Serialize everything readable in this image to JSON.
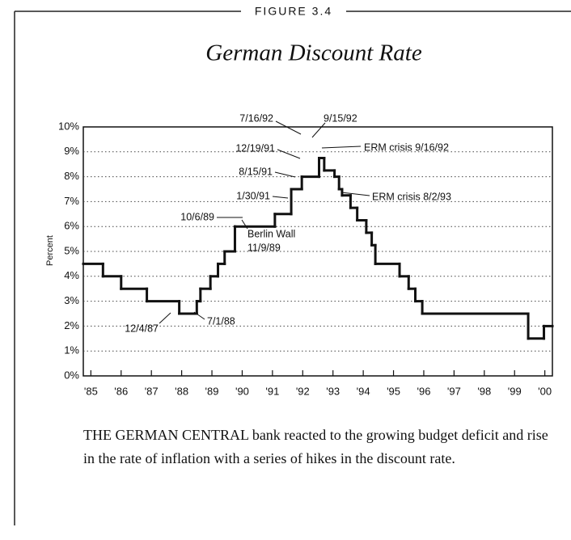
{
  "figure_label": "FIGURE 3.4",
  "caption": "THE GERMAN CENTRAL bank reacted to the growing budget deficit and rise in the rate of inflation with a series of hikes in the discount rate.",
  "chart_data": {
    "type": "line",
    "step": "post",
    "title": "German Discount Rate",
    "y_label": "Percent",
    "color": "#111111",
    "grid": true,
    "x": [
      1984.75,
      1985.4,
      1986.0,
      1986.85,
      1987.92,
      1988.5,
      1988.62,
      1988.95,
      1989.2,
      1989.42,
      1989.76,
      1991.08,
      1991.62,
      1991.97,
      1992.54,
      1992.71,
      1993.05,
      1993.2,
      1993.3,
      1993.58,
      1993.8,
      1994.1,
      1994.28,
      1994.4,
      1995.2,
      1995.5,
      1995.72,
      1995.95,
      1999.45,
      1999.97
    ],
    "values": [
      4.5,
      4.0,
      3.5,
      3.0,
      2.5,
      3.0,
      3.5,
      4.0,
      4.5,
      5.0,
      6.0,
      6.5,
      7.5,
      8.0,
      8.75,
      8.25,
      8.0,
      7.5,
      7.25,
      6.75,
      6.25,
      5.75,
      5.25,
      4.5,
      4.0,
      3.5,
      3.0,
      2.5,
      1.5,
      2.0
    ],
    "xlim": [
      1984.75,
      2000.25
    ],
    "ylim": [
      0,
      10
    ],
    "xticks": [
      {
        "value": 1985,
        "label": "'85"
      },
      {
        "value": 1986,
        "label": "'86"
      },
      {
        "value": 1987,
        "label": "'87"
      },
      {
        "value": 1988,
        "label": "'88"
      },
      {
        "value": 1989,
        "label": "'89"
      },
      {
        "value": 1990,
        "label": "'90"
      },
      {
        "value": 1991,
        "label": "'91"
      },
      {
        "value": 1992,
        "label": "'92"
      },
      {
        "value": 1993,
        "label": "'93"
      },
      {
        "value": 1994,
        "label": "'94"
      },
      {
        "value": 1995,
        "label": "'95"
      },
      {
        "value": 1996,
        "label": "'96"
      },
      {
        "value": 1997,
        "label": "'97"
      },
      {
        "value": 1998,
        "label": "'98"
      },
      {
        "value": 1999,
        "label": "'99"
      },
      {
        "value": 2000,
        "label": "'00"
      }
    ],
    "yticks": [
      {
        "value": 0,
        "label": "0%"
      },
      {
        "value": 1,
        "label": "1%"
      },
      {
        "value": 2,
        "label": "2%"
      },
      {
        "value": 3,
        "label": "3%"
      },
      {
        "value": 4,
        "label": "4%"
      },
      {
        "value": 5,
        "label": "5%"
      },
      {
        "value": 6,
        "label": "6%"
      },
      {
        "value": 7,
        "label": "7%"
      },
      {
        "value": 8,
        "label": "8%"
      },
      {
        "value": 9,
        "label": "9%"
      },
      {
        "value": 10,
        "label": "10%"
      }
    ],
    "annotations": [
      "7/16/92",
      "9/15/92",
      "12/19/91",
      "ERM crisis  9/16/92",
      "8/15/91",
      "1/30/91",
      "ERM crisis  8/2/93",
      "10/6/89",
      "Berlin Wall",
      "11/9/89",
      "12/4/87",
      "7/1/88"
    ]
  }
}
